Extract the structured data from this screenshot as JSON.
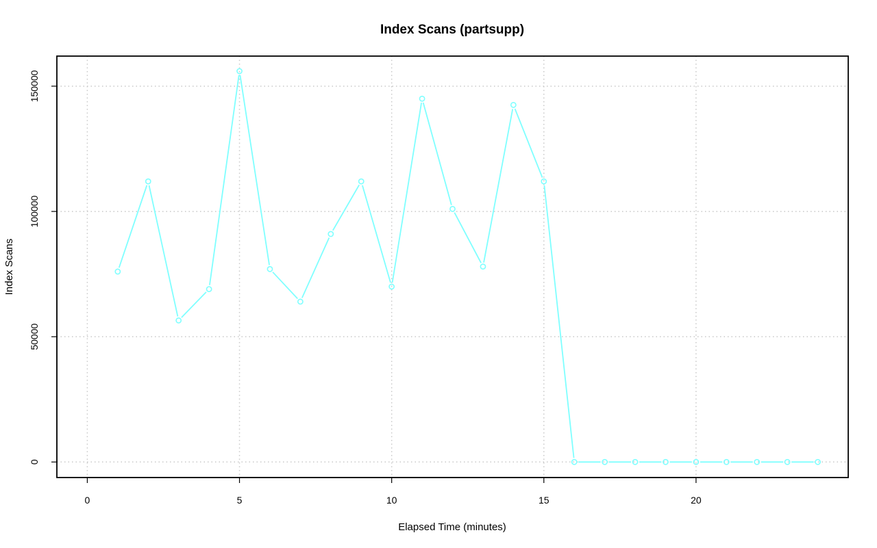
{
  "colors": {
    "series": "#7fffff",
    "grid": "#c8c8c8",
    "frame": "#000000"
  },
  "chart_data": {
    "type": "line",
    "title": "Index Scans (partsupp)",
    "xlabel": "Elapsed Time (minutes)",
    "ylabel": "Index Scans",
    "xlim": [
      -1,
      25
    ],
    "ylim": [
      -6200,
      162000
    ],
    "x_ticks": [
      0,
      5,
      10,
      15,
      20
    ],
    "y_ticks": [
      0,
      50000,
      100000,
      150000
    ],
    "grid": true,
    "markers": "open-circle",
    "series": [
      {
        "x": [
          1,
          2,
          3,
          4,
          5,
          6,
          7,
          8,
          9,
          10,
          11,
          12,
          13,
          14,
          15,
          16,
          17,
          18,
          19,
          20,
          21,
          22,
          23,
          24
        ],
        "y": [
          76000,
          112000,
          56500,
          69000,
          156000,
          77000,
          64000,
          91000,
          112000,
          70000,
          145000,
          101000,
          78000,
          142500,
          112000,
          0,
          0,
          0,
          0,
          0,
          0,
          0,
          0,
          0
        ]
      }
    ]
  }
}
